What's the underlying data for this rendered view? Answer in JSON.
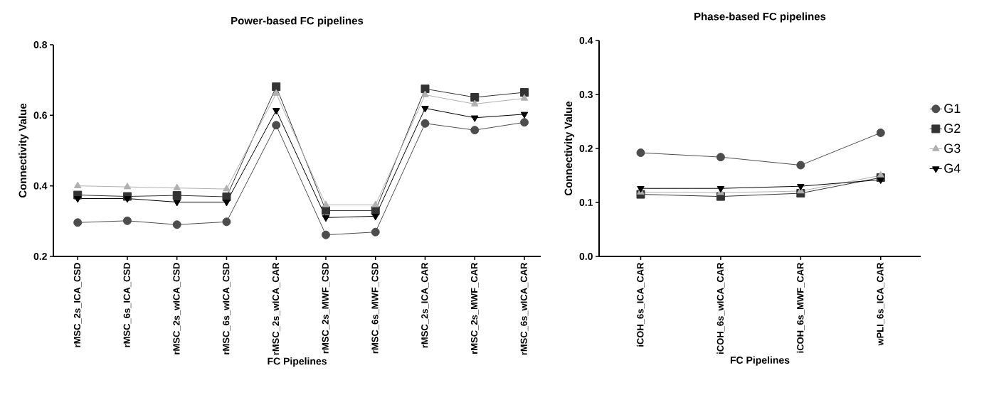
{
  "chart_data": [
    {
      "type": "line",
      "title": "Power-based FC pipelines",
      "xlabel": "FC Pipelines",
      "ylabel": "Connectivity Value",
      "categories": [
        "rMSC_2s_ICA_CSD",
        "rMSC_6s_ICA_CSD",
        "rMSC_2s_wICA_CSD",
        "rMSC_6s_wICA_CSD",
        "rMSC_2s_wICA_CAR",
        "rMSC_2s_MWF_CSD",
        "rMSC_6s_MWF_CSD",
        "rMSC_2s_ICA_CAR",
        "rMSC_2s_MWF_CAR",
        "rMSC_6s_wICA_CAR"
      ],
      "ylim": [
        0.2,
        0.8
      ],
      "yticks": [
        0.2,
        0.4,
        0.6,
        0.8
      ],
      "grid": false,
      "series": [
        {
          "color": "#4d4d4d",
          "marker": "circle",
          "values": [
            0.296,
            0.301,
            0.29,
            0.298,
            0.572,
            0.261,
            0.269,
            0.577,
            0.558,
            0.58
          ]
        },
        {
          "color": "#333333",
          "marker": "square",
          "values": [
            0.374,
            0.37,
            0.373,
            0.369,
            0.681,
            0.33,
            0.33,
            0.675,
            0.651,
            0.665
          ]
        },
        {
          "color": "#b0b0b0",
          "marker": "triangle",
          "values": [
            0.4,
            0.397,
            0.394,
            0.391,
            0.662,
            0.346,
            0.346,
            0.658,
            0.632,
            0.648
          ]
        },
        {
          "color": "#000000",
          "marker": "triangle-down",
          "values": [
            0.364,
            0.364,
            0.354,
            0.354,
            0.614,
            0.31,
            0.314,
            0.62,
            0.593,
            0.603
          ]
        }
      ]
    },
    {
      "type": "line",
      "title": "Phase-based FC pipelines",
      "xlabel": "FC Pipelines",
      "ylabel": "Connectivity Value",
      "categories": [
        "iCOH_6s_ICA_CAR",
        "iCOH_6s_wICA_CAR",
        "iCOH_6s_MWF_CAR",
        "wPLI_6s_ICA_CAR"
      ],
      "ylim": [
        0,
        0.4
      ],
      "yticks": [
        {
          "value": 0,
          "label": "0.0"
        },
        0.1,
        0.2,
        0.3,
        0.4
      ],
      "grid": false,
      "legend": "right",
      "series": [
        {
          "name": "G1",
          "color": "#4d4d4d",
          "marker": "circle",
          "values": [
            0.192,
            0.184,
            0.169,
            0.229
          ]
        },
        {
          "name": "G2",
          "color": "#333333",
          "marker": "square",
          "values": [
            0.115,
            0.111,
            0.117,
            0.146
          ]
        },
        {
          "name": "G3",
          "color": "#b0b0b0",
          "marker": "triangle",
          "values": [
            0.119,
            0.118,
            0.121,
            0.15
          ]
        },
        {
          "name": "G4",
          "color": "#000000",
          "marker": "triangle-down",
          "values": [
            0.126,
            0.126,
            0.13,
            0.142
          ]
        }
      ]
    }
  ]
}
